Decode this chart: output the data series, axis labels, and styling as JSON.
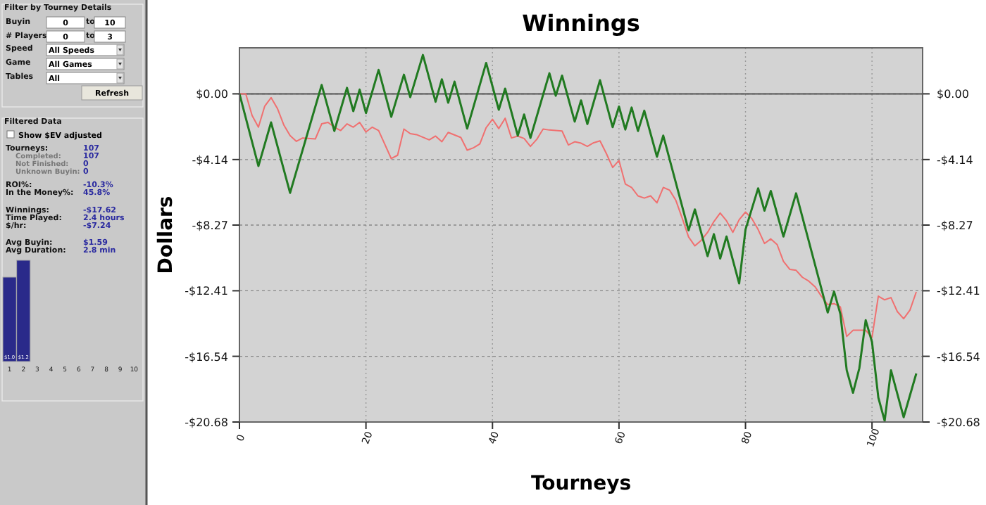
{
  "chart_data": [
    {
      "type": "other",
      "annotations": [
        "Filter by Tourney Details",
        "Buyin",
        "0",
        "to",
        "10",
        "# Players",
        "0",
        "to",
        "3",
        "Speed",
        "All Speeds",
        "Game",
        "All Games",
        "Tables",
        "All",
        "Refresh",
        "Filtered Data",
        "Show $EV adjusted",
        "Tourneys:",
        "107",
        "Completed:",
        "107",
        "Not Finished:",
        "0",
        "Unknown Buyin:",
        "0",
        "ROI%:",
        "-10.3%",
        "In the Money%:",
        "45.8%",
        "Winnings:",
        "-$17.62",
        "Time Played:",
        "2.4 hours",
        "$/hr:",
        "-$7.24",
        "Avg Buyin:",
        "$1.59",
        "Avg Duration:",
        "2.8 min"
      ]
    },
    {
      "type": "bar",
      "categories": [
        "1",
        "2",
        "3",
        "4",
        "5",
        "6",
        "7",
        "8",
        "9",
        "10"
      ],
      "values": [
        1.0,
        1.2,
        null,
        null,
        null,
        null,
        null,
        null,
        null,
        null
      ],
      "value_labels": [
        "$1.0",
        "$1.2",
        null,
        null,
        null,
        null,
        null,
        null,
        null,
        null
      ],
      "color": "#2a2a8a"
    },
    {
      "type": "line",
      "title": "Winnings",
      "xlabel": "Tourneys",
      "ylabel": "Dollars",
      "xlim": [
        0,
        108
      ],
      "xticks": [
        0,
        20,
        40,
        60,
        80,
        100
      ],
      "ylim": [
        -20.68,
        2.9
      ],
      "yticks": [
        {
          "value": 0,
          "label": "$0.00"
        },
        {
          "value": -4.14,
          "label": "-$4.14"
        },
        {
          "value": -8.27,
          "label": "-$8.27"
        },
        {
          "value": -12.41,
          "label": "-$12.41"
        },
        {
          "value": -16.54,
          "label": "-$16.54"
        },
        {
          "value": -20.68,
          "label": "-$20.68"
        }
      ],
      "y2lim": [
        -20.68,
        2.9
      ],
      "y2ticks": [
        {
          "value": 0,
          "label": "$0.00"
        },
        {
          "value": -4.14,
          "label": "-$4.14"
        },
        {
          "value": -8.27,
          "label": "-$8.27"
        },
        {
          "value": -12.41,
          "label": "-$12.41"
        },
        {
          "value": -16.54,
          "label": "-$16.54"
        },
        {
          "value": -20.68,
          "label": "-$20.68"
        }
      ],
      "grid": true,
      "ref_lines": [
        {
          "axis": "y",
          "value": 0,
          "color": "#555555"
        }
      ],
      "series": [
        {
          "color": "#f07070",
          "x": [
            0,
            1,
            2,
            3,
            4,
            5,
            6,
            7,
            8,
            9,
            10,
            12,
            13,
            14,
            15,
            16,
            17,
            18,
            19,
            20,
            21,
            22,
            24,
            25,
            26,
            27,
            28,
            30,
            31,
            32,
            33,
            35,
            36,
            37,
            38,
            39,
            40,
            41,
            42,
            43,
            44,
            45,
            46,
            47,
            48,
            49,
            51,
            52,
            53,
            54,
            55,
            56,
            57,
            58,
            59,
            60,
            61,
            62,
            63,
            64,
            65,
            66,
            67,
            68,
            69,
            70,
            71,
            72,
            73,
            74,
            75,
            76,
            77,
            78,
            79,
            80,
            81,
            82,
            83,
            84,
            85,
            86,
            87,
            88,
            89,
            90,
            91,
            92,
            93,
            94,
            95,
            96,
            97,
            99,
            100,
            101,
            102,
            103,
            104,
            105,
            106,
            107
          ],
          "values": [
            0,
            0,
            -1.37,
            -2.1,
            -0.77,
            -0.24,
            -0.92,
            -1.95,
            -2.63,
            -2.99,
            -2.78,
            -2.84,
            -1.89,
            -1.8,
            -2.1,
            -2.31,
            -1.89,
            -2.1,
            -1.8,
            -2.4,
            -2.1,
            -2.31,
            -4.08,
            -3.87,
            -2.22,
            -2.51,
            -2.57,
            -2.9,
            -2.66,
            -3.02,
            -2.43,
            -2.75,
            -3.55,
            -3.4,
            -3.16,
            -2.13,
            -1.6,
            -2.19,
            -1.54,
            -2.78,
            -2.66,
            -2.81,
            -3.31,
            -2.87,
            -2.22,
            -2.28,
            -2.34,
            -3.22,
            -3.02,
            -3.11,
            -3.31,
            -3.08,
            -2.96,
            -3.76,
            -4.64,
            -4.2,
            -5.68,
            -5.9,
            -6.43,
            -6.57,
            -6.43,
            -6.87,
            -5.9,
            -6.07,
            -6.72,
            -7.84,
            -9.02,
            -9.58,
            -9.23,
            -8.73,
            -8.05,
            -7.51,
            -8.0,
            -8.73,
            -7.93,
            -7.45,
            -7.86,
            -8.55,
            -9.43,
            -9.14,
            -9.5,
            -10.56,
            -11.06,
            -11.12,
            -11.56,
            -11.8,
            -12.16,
            -12.75,
            -13.28,
            -13.22,
            -13.43,
            -15.29,
            -14.9,
            -14.9,
            -15.35,
            -12.75,
            -12.98,
            -12.84,
            -13.72,
            -14.17,
            -13.63,
            -12.48
          ]
        },
        {
          "color": "#217a21",
          "x": [
            0,
            3,
            5,
            8,
            13,
            15,
            17,
            18,
            19,
            20,
            22,
            24,
            26,
            27,
            29,
            31,
            32,
            33,
            34,
            36,
            39,
            41,
            42,
            44,
            45,
            46,
            49,
            50,
            51,
            53,
            54,
            55,
            57,
            59,
            60,
            61,
            62,
            63,
            64,
            66,
            67,
            71,
            72,
            74,
            75,
            76,
            77,
            79,
            80,
            82,
            83,
            84,
            86,
            88,
            93,
            94,
            95,
            96,
            97,
            98,
            99,
            100,
            101,
            102,
            103,
            105,
            107
          ],
          "values": [
            0,
            -4.55,
            -1.8,
            -6.24,
            0.56,
            -2.34,
            0.38,
            -1.09,
            0.27,
            -1.21,
            1.51,
            -1.45,
            1.21,
            -0.21,
            2.45,
            -0.5,
            0.92,
            -0.56,
            0.77,
            -2.19,
            1.95,
            -1.0,
            0.33,
            -2.63,
            -1.3,
            -2.78,
            1.3,
            -0.12,
            1.15,
            -1.75,
            -0.41,
            -1.9,
            0.86,
            -2.1,
            -0.8,
            -2.25,
            -0.86,
            -2.34,
            -1.06,
            -3.96,
            -2.63,
            -8.6,
            -7.28,
            -10.23,
            -8.84,
            -10.38,
            -8.99,
            -11.95,
            -8.55,
            -5.95,
            -7.36,
            -6.12,
            -8.99,
            -6.27,
            -13.78,
            -12.45,
            -13.87,
            -17.42,
            -18.84,
            -17.28,
            -14.26,
            -15.64,
            -19.14,
            -20.61,
            -17.42,
            -20.38,
            -17.62
          ]
        }
      ]
    }
  ]
}
